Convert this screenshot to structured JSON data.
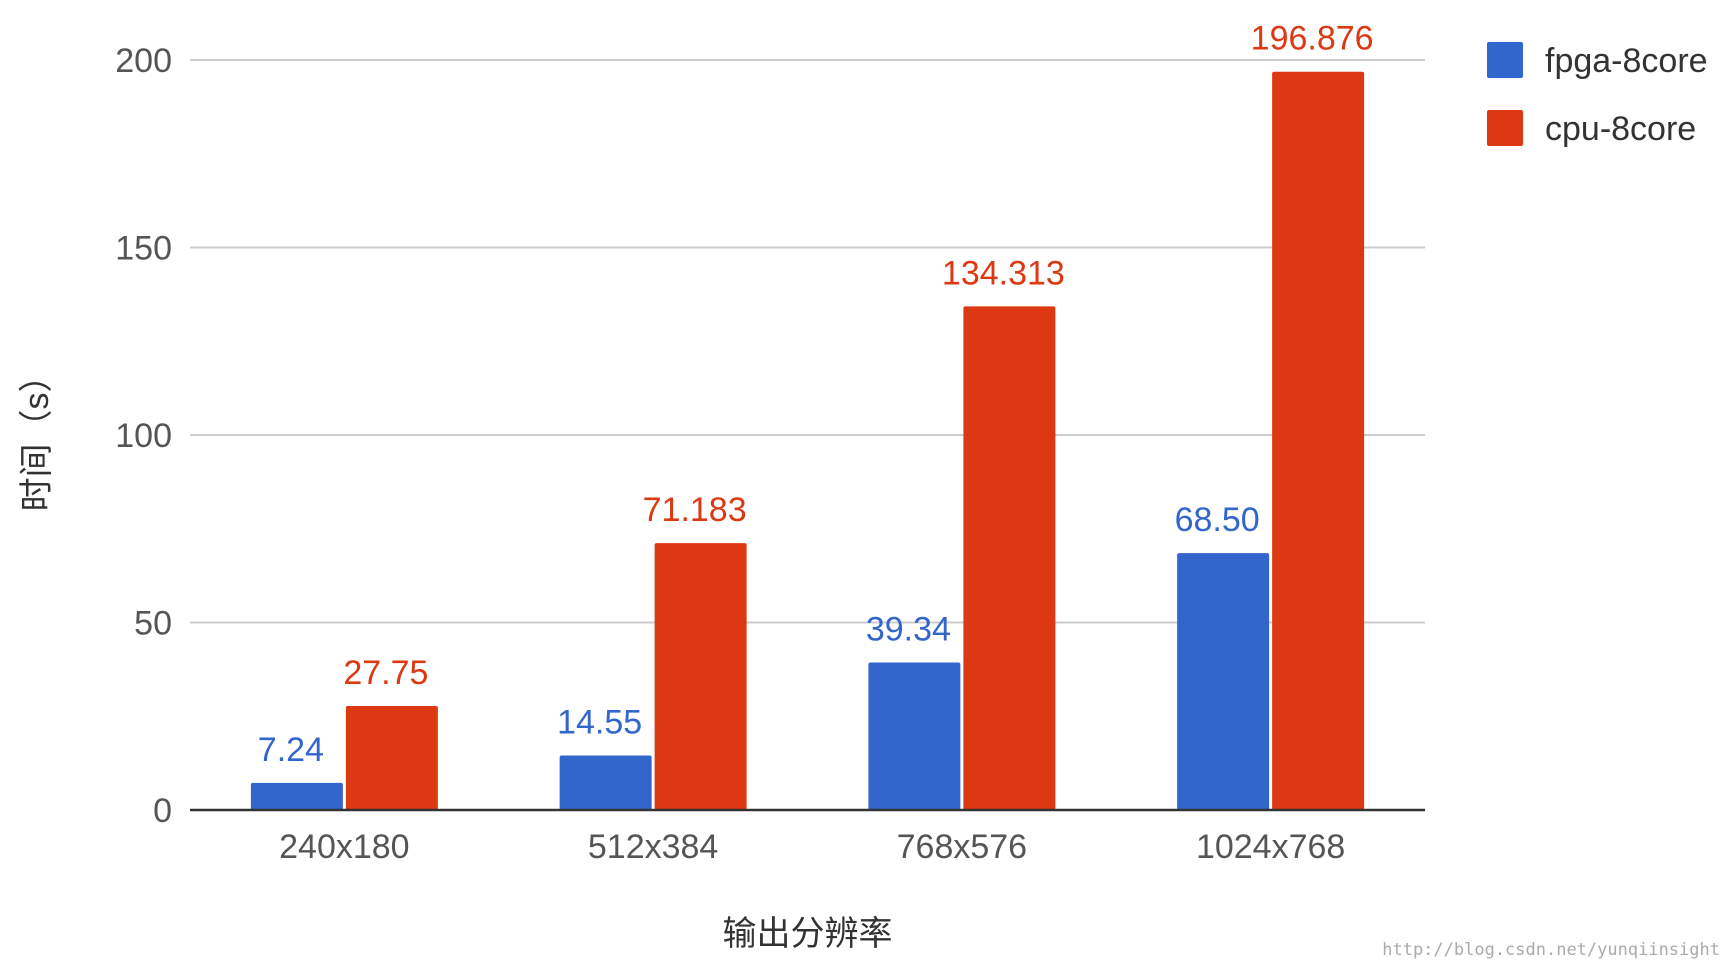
{
  "chart_data": {
    "type": "bar",
    "categories": [
      "240x180",
      "512x384",
      "768x576",
      "1024x768"
    ],
    "series": [
      {
        "name": "fpga-8core",
        "color": "#3366cc",
        "values": [
          7.24,
          14.55,
          39.34,
          68.5
        ],
        "labels": [
          "7.24",
          "14.55",
          "39.34",
          "68.50"
        ]
      },
      {
        "name": "cpu-8core",
        "color": "#dc3912",
        "values": [
          27.75,
          71.183,
          134.313,
          196.876
        ],
        "labels": [
          "27.75",
          "71.183",
          "134.313",
          "196.876"
        ]
      }
    ],
    "title": "",
    "xlabel": "输出分辨率",
    "ylabel": "时间（s）",
    "ylim": [
      0,
      200
    ],
    "yticks": [
      0,
      50,
      100,
      150,
      200
    ],
    "ytick_labels": [
      "0",
      "50",
      "100",
      "150",
      "200"
    ],
    "grid": true,
    "legend_position": "top-right"
  },
  "watermark": "http://blog.csdn.net/yunqiinsight"
}
